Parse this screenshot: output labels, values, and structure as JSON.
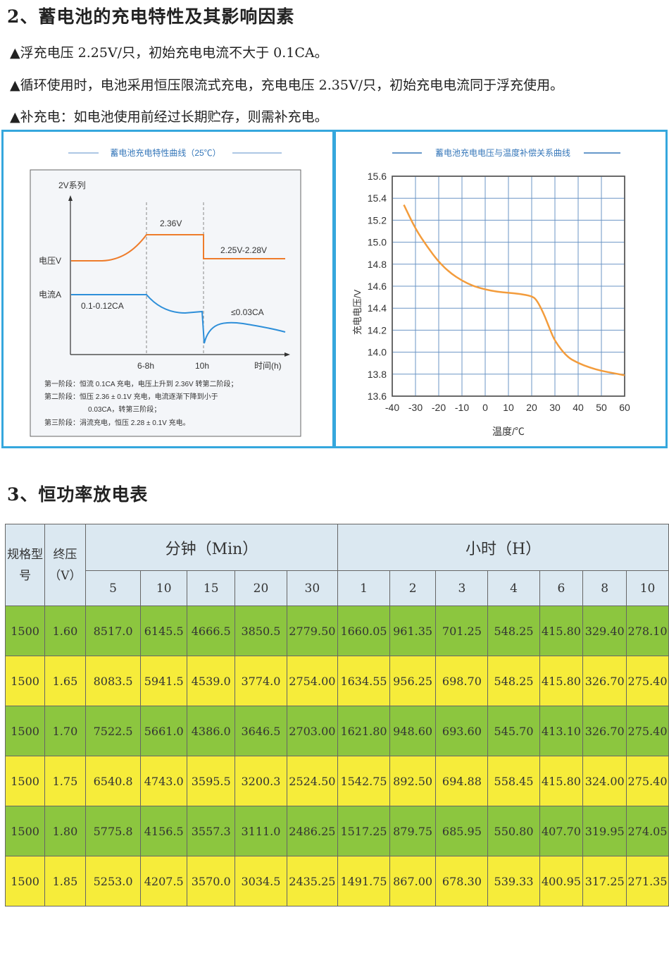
{
  "section2": {
    "heading": "2、蓄电池的充电特性及其影响因素",
    "lines": [
      "▲浮充电压 2.25V/只，初始充电电流不大于 0.1CA。",
      "▲循环使用时，电池采用恒压限流式充电，充电电压 2.35V/只，初始充电电流同于浮充使用。",
      "▲补充电：如电池使用前经过长期贮存，则需补充电。"
    ]
  },
  "left_chart": {
    "title": "蓄电池充电特性曲线（25℃）",
    "series_label": "2V系列",
    "y_voltage_label": "电压V",
    "y_current_label": "电流A",
    "label_236": "2.36V",
    "label_225": "2.25V-2.28V",
    "label_current1": "0.1-0.12CA",
    "label_current3": "≤0.03CA",
    "x_tick1": "6-8h",
    "x_tick2": "10h",
    "x_axis_label": "时间(h)",
    "notes": [
      "第一阶段：恒流 0.1CA 充电，电压上升到 2.36V 转第二阶段；",
      "第二阶段：恒压 2.36 ± 0.1V 充电，电流逐渐下降到小于",
      "0.03CA，转第三阶段；",
      "第三阶段：涓流充电，恒压 2.28 ± 0.1V 充电。"
    ]
  },
  "chart_data": {
    "type": "line",
    "title": "蓄电池充电电压与温度补偿关系曲线",
    "xlabel": "温度/℃",
    "ylabel": "充电电压/V",
    "xlim": [
      -40,
      60
    ],
    "ylim": [
      13.6,
      15.6
    ],
    "xticks": [
      "-40",
      "-30",
      "-20",
      "-10",
      "0",
      "10",
      "20",
      "30",
      "40",
      "50",
      "60"
    ],
    "yticks": [
      "15.6",
      "15.4",
      "15.2",
      "15.0",
      "14.8",
      "14.6",
      "14.4",
      "14.2",
      "14.0",
      "13.8",
      "13.6"
    ],
    "grid": true,
    "series": [
      {
        "x": [
          -35,
          -30,
          -25,
          -20,
          -15,
          -10,
          -5,
          0,
          5,
          10,
          15,
          20,
          22,
          25,
          28,
          30,
          35,
          40,
          45,
          50,
          55,
          60
        ],
        "y": [
          15.34,
          15.12,
          14.96,
          14.82,
          14.72,
          14.65,
          14.6,
          14.57,
          14.55,
          14.54,
          14.53,
          14.51,
          14.48,
          14.36,
          14.2,
          14.1,
          13.96,
          13.9,
          13.86,
          13.83,
          13.81,
          13.79
        ]
      }
    ],
    "color": "#f39c3c"
  },
  "section3": {
    "heading": "3、恒功率放电表"
  },
  "table": {
    "header_spec": "规格型号",
    "header_volt": "终压（V）",
    "group_min": "分钟（Min）",
    "group_hour": "小时（H）",
    "min_cols": [
      "5",
      "10",
      "15",
      "20",
      "30"
    ],
    "hour_cols": [
      "1",
      "2",
      "3",
      "4",
      "6",
      "8",
      "10"
    ],
    "rows": [
      [
        "1500",
        "1.60",
        "8517.0",
        "6145.5",
        "4666.5",
        "3850.5",
        "2779.50",
        "1660.05",
        "961.35",
        "701.25",
        "548.25",
        "415.80",
        "329.40",
        "278.10"
      ],
      [
        "1500",
        "1.65",
        "8083.5",
        "5941.5",
        "4539.0",
        "3774.0",
        "2754.00",
        "1634.55",
        "956.25",
        "698.70",
        "548.25",
        "415.80",
        "326.70",
        "275.40"
      ],
      [
        "1500",
        "1.70",
        "7522.5",
        "5661.0",
        "4386.0",
        "3646.5",
        "2703.00",
        "1621.80",
        "948.60",
        "693.60",
        "545.70",
        "413.10",
        "326.70",
        "275.40"
      ],
      [
        "1500",
        "1.75",
        "6540.8",
        "4743.0",
        "3595.5",
        "3200.3",
        "2524.50",
        "1542.75",
        "892.50",
        "694.88",
        "558.45",
        "415.80",
        "324.00",
        "275.40"
      ],
      [
        "1500",
        "1.80",
        "5775.8",
        "4156.5",
        "3557.3",
        "3111.0",
        "2486.25",
        "1517.25",
        "879.75",
        "685.95",
        "550.80",
        "407.70",
        "319.95",
        "274.05"
      ],
      [
        "1500",
        "1.85",
        "5253.0",
        "4207.5",
        "3570.0",
        "3034.5",
        "2435.25",
        "1491.75",
        "867.00",
        "678.30",
        "539.33",
        "400.95",
        "317.25",
        "271.35"
      ]
    ]
  }
}
